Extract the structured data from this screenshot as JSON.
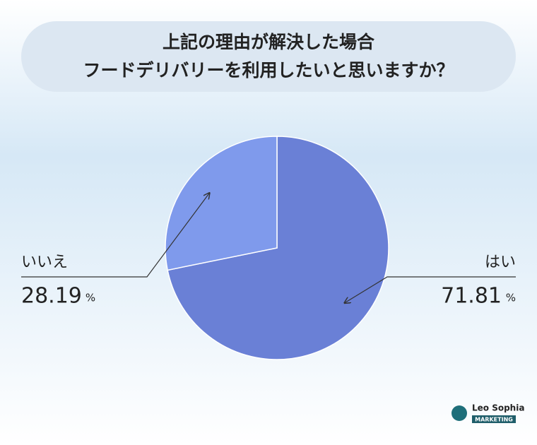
{
  "chart_data": {
    "type": "pie",
    "title": [
      "上記の理由が解決した場合",
      "フードデリバリーを利用したいと思いますか？"
    ],
    "categories": [
      "はい",
      "いいえ"
    ],
    "values": [
      71.81,
      28.19
    ],
    "colors": [
      "#6a80d6",
      "#7f9aec"
    ],
    "value_suffix": "%"
  },
  "brand": {
    "name": "Leo Sophia",
    "tag": "MARKETING"
  }
}
